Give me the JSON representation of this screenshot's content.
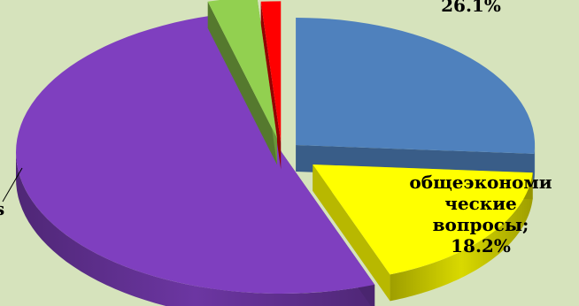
{
  "chart_data": {
    "type": "pie",
    "title": "",
    "series": [
      {
        "label": "26.1%",
        "value": 26.1,
        "color": "#4f81bd"
      },
      {
        "label": "общеэкономические вопросы; 18.2%",
        "value": 18.2,
        "color": "#ffff00"
      },
      {
        "label": "",
        "value": 51.5,
        "color": "#7f3fbf"
      },
      {
        "label": "",
        "value": 3.0,
        "color": "#92d050"
      },
      {
        "label": "",
        "value": 1.2,
        "color": "#ff0000"
      }
    ]
  },
  "labels": {
    "top_pct": "26.1%",
    "yellow_l1": "общеэкономи",
    "yellow_l2": "ческие",
    "yellow_l3": "вопросы;",
    "yellow_l4": "18.2%",
    "left_fragment": "s"
  }
}
